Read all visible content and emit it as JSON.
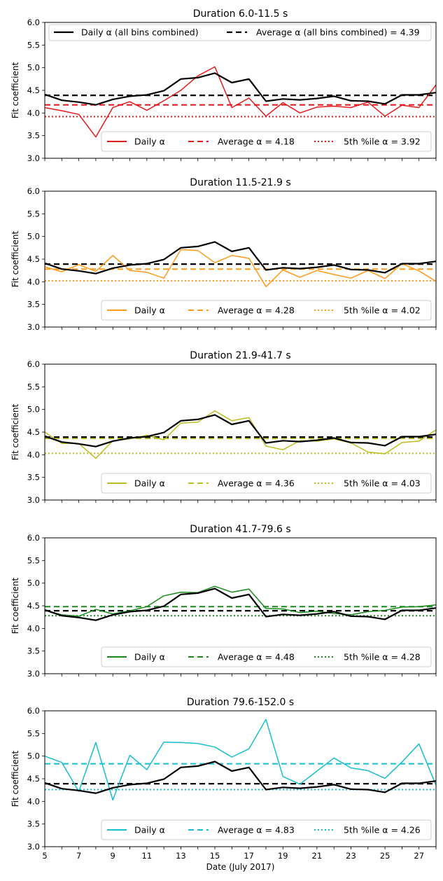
{
  "chart_data": [
    {
      "type": "line",
      "title": "Duration 6.0-11.5 s",
      "xlabel": "",
      "ylabel": "Fit coefficient",
      "xlim": [
        5,
        28
      ],
      "ylim": [
        3.0,
        6.0
      ],
      "yticks": [
        "3.0",
        "3.5",
        "4.0",
        "4.5",
        "5.0",
        "5.5",
        "6.0"
      ],
      "color": "#e41a1c",
      "legend_top": {
        "daily": "Daily α (all bins combined)",
        "average": "Average α (all bins combined) = 4.39"
      },
      "legend_bottom": {
        "daily": "Daily α",
        "average": "Average α = 4.18",
        "pct": "5th %ile α = 3.92"
      },
      "average": 4.18,
      "pct5": 3.92,
      "x": [
        5,
        6,
        7,
        8,
        9,
        10,
        11,
        12,
        13,
        14,
        15,
        16,
        17,
        18,
        19,
        20,
        21,
        22,
        23,
        24,
        25,
        26,
        27,
        28
      ],
      "values": [
        4.12,
        4.05,
        3.97,
        3.47,
        4.12,
        4.25,
        4.06,
        4.27,
        4.5,
        4.82,
        5.02,
        4.12,
        4.33,
        3.93,
        4.23,
        4.0,
        4.13,
        4.15,
        4.12,
        4.24,
        3.93,
        4.17,
        4.12,
        4.62
      ]
    },
    {
      "type": "line",
      "title": "Duration 11.5-21.9 s",
      "xlabel": "",
      "ylabel": "Fit coefficient",
      "xlim": [
        5,
        28
      ],
      "ylim": [
        3.0,
        6.0
      ],
      "yticks": [
        "3.0",
        "3.5",
        "4.0",
        "4.5",
        "5.0",
        "5.5",
        "6.0"
      ],
      "color": "#ff9a1a",
      "legend_bottom": {
        "daily": "Daily α",
        "average": "Average α = 4.28",
        "pct": "5th %ile α = 4.02"
      },
      "average": 4.28,
      "pct5": 4.02,
      "x": [
        5,
        6,
        7,
        8,
        9,
        10,
        11,
        12,
        13,
        14,
        15,
        16,
        17,
        18,
        19,
        20,
        21,
        22,
        23,
        24,
        25,
        26,
        27,
        28
      ],
      "values": [
        4.33,
        4.22,
        4.38,
        4.23,
        4.58,
        4.25,
        4.21,
        4.08,
        4.71,
        4.69,
        4.42,
        4.58,
        4.52,
        3.89,
        4.26,
        4.1,
        4.25,
        4.16,
        4.08,
        4.25,
        4.07,
        4.4,
        4.24,
        4.01
      ]
    },
    {
      "type": "line",
      "title": "Duration 21.9-41.7 s",
      "xlabel": "",
      "ylabel": "Fit coefficient",
      "xlim": [
        5,
        28
      ],
      "ylim": [
        3.0,
        6.0
      ],
      "yticks": [
        "3.0",
        "3.5",
        "4.0",
        "4.5",
        "5.0",
        "5.5",
        "6.0"
      ],
      "color": "#bcbd22",
      "legend_bottom": {
        "daily": "Daily α",
        "average": "Average α = 4.36",
        "pct": "5th %ile α = 4.03"
      },
      "average": 4.36,
      "pct5": 4.03,
      "x": [
        5,
        6,
        7,
        8,
        9,
        10,
        11,
        12,
        13,
        14,
        15,
        16,
        17,
        18,
        19,
        20,
        21,
        22,
        23,
        24,
        25,
        26,
        27,
        28
      ],
      "values": [
        4.5,
        4.25,
        4.25,
        3.92,
        4.31,
        4.35,
        4.43,
        4.33,
        4.7,
        4.72,
        4.97,
        4.75,
        4.82,
        4.19,
        4.11,
        4.31,
        4.3,
        4.35,
        4.26,
        4.06,
        4.02,
        4.27,
        4.3,
        4.55
      ]
    },
    {
      "type": "line",
      "title": "Duration 41.7-79.6 s",
      "xlabel": "",
      "ylabel": "Fit coefficient",
      "xlim": [
        5,
        28
      ],
      "ylim": [
        3.0,
        6.0
      ],
      "yticks": [
        "3.0",
        "3.5",
        "4.0",
        "4.5",
        "5.0",
        "5.5",
        "6.0"
      ],
      "color": "#1a8a1a",
      "legend_bottom": {
        "daily": "Daily α",
        "average": "Average α = 4.48",
        "pct": "5th %ile α = 4.28"
      },
      "average": 4.48,
      "pct5": 4.28,
      "x": [
        5,
        6,
        7,
        8,
        9,
        10,
        11,
        12,
        13,
        14,
        15,
        16,
        17,
        18,
        19,
        20,
        21,
        22,
        23,
        24,
        25,
        26,
        27,
        28
      ],
      "values": [
        4.4,
        4.3,
        4.27,
        4.42,
        4.32,
        4.39,
        4.48,
        4.72,
        4.8,
        4.79,
        4.93,
        4.8,
        4.87,
        4.44,
        4.43,
        4.35,
        4.38,
        4.33,
        4.3,
        4.37,
        4.4,
        4.47,
        4.48,
        4.52
      ]
    },
    {
      "type": "line",
      "title": "Duration 79.6-152.0 s",
      "xlabel": "Date (July 2017)",
      "ylabel": "Fit coefficient",
      "xlim": [
        5,
        28
      ],
      "ylim": [
        3.0,
        6.0
      ],
      "yticks": [
        "3.0",
        "3.5",
        "4.0",
        "4.5",
        "5.0",
        "5.5",
        "6.0"
      ],
      "xticks": [
        "5",
        "7",
        "9",
        "11",
        "13",
        "15",
        "17",
        "19",
        "21",
        "23",
        "25",
        "27"
      ],
      "color": "#17becf",
      "legend_bottom": {
        "daily": "Daily α",
        "average": "Average α = 4.83",
        "pct": "5th %ile α = 4.26"
      },
      "average": 4.83,
      "pct5": 4.26,
      "x": [
        5,
        6,
        7,
        8,
        9,
        10,
        11,
        12,
        13,
        14,
        15,
        16,
        17,
        18,
        19,
        20,
        21,
        22,
        23,
        24,
        25,
        26,
        27,
        28
      ],
      "values": [
        5.0,
        4.86,
        4.22,
        5.3,
        4.03,
        5.02,
        4.7,
        5.31,
        5.3,
        5.28,
        5.2,
        4.98,
        5.16,
        5.81,
        4.55,
        4.38,
        4.67,
        4.96,
        4.74,
        4.68,
        4.51,
        4.87,
        5.27,
        4.36
      ]
    }
  ],
  "combined": {
    "color": "#000000",
    "average": 4.39,
    "x": [
      5,
      6,
      7,
      8,
      9,
      10,
      11,
      12,
      13,
      14,
      15,
      16,
      17,
      18,
      19,
      20,
      21,
      22,
      23,
      24,
      25,
      26,
      27,
      28
    ],
    "values": [
      4.41,
      4.28,
      4.24,
      4.18,
      4.3,
      4.37,
      4.4,
      4.49,
      4.75,
      4.78,
      4.88,
      4.67,
      4.75,
      4.26,
      4.31,
      4.29,
      4.32,
      4.37,
      4.27,
      4.26,
      4.2,
      4.4,
      4.4,
      4.45
    ]
  }
}
